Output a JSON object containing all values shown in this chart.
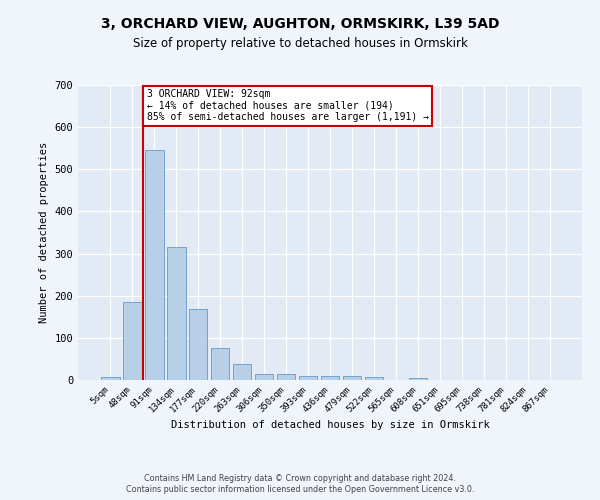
{
  "title": "3, ORCHARD VIEW, AUGHTON, ORMSKIRK, L39 5AD",
  "subtitle": "Size of property relative to detached houses in Ormskirk",
  "xlabel": "Distribution of detached houses by size in Ormskirk",
  "ylabel": "Number of detached properties",
  "bar_labels": [
    "5sqm",
    "48sqm",
    "91sqm",
    "134sqm",
    "177sqm",
    "220sqm",
    "263sqm",
    "306sqm",
    "350sqm",
    "393sqm",
    "436sqm",
    "479sqm",
    "522sqm",
    "565sqm",
    "608sqm",
    "651sqm",
    "695sqm",
    "738sqm",
    "781sqm",
    "824sqm",
    "867sqm"
  ],
  "bar_values": [
    8,
    186,
    545,
    315,
    168,
    77,
    38,
    15,
    15,
    10,
    10,
    10,
    7,
    0,
    5,
    0,
    0,
    0,
    0,
    0,
    0
  ],
  "bar_color": "#b8cfe8",
  "bar_edge_color": "#6699cc",
  "vline_color": "#cc0000",
  "vline_x": 1.5,
  "annotation_title": "3 ORCHARD VIEW: 92sqm",
  "annotation_line1": "← 14% of detached houses are smaller (194)",
  "annotation_line2": "85% of semi-detached houses are larger (1,191) →",
  "annotation_box_edge": "#cc0000",
  "ylim": [
    0,
    700
  ],
  "yticks": [
    0,
    100,
    200,
    300,
    400,
    500,
    600,
    700
  ],
  "bg_color": "#f0f4fb",
  "plot_bg_color": "#e2eaf5",
  "footer_line1": "Contains HM Land Registry data © Crown copyright and database right 2024.",
  "footer_line2": "Contains public sector information licensed under the Open Government Licence v3.0."
}
